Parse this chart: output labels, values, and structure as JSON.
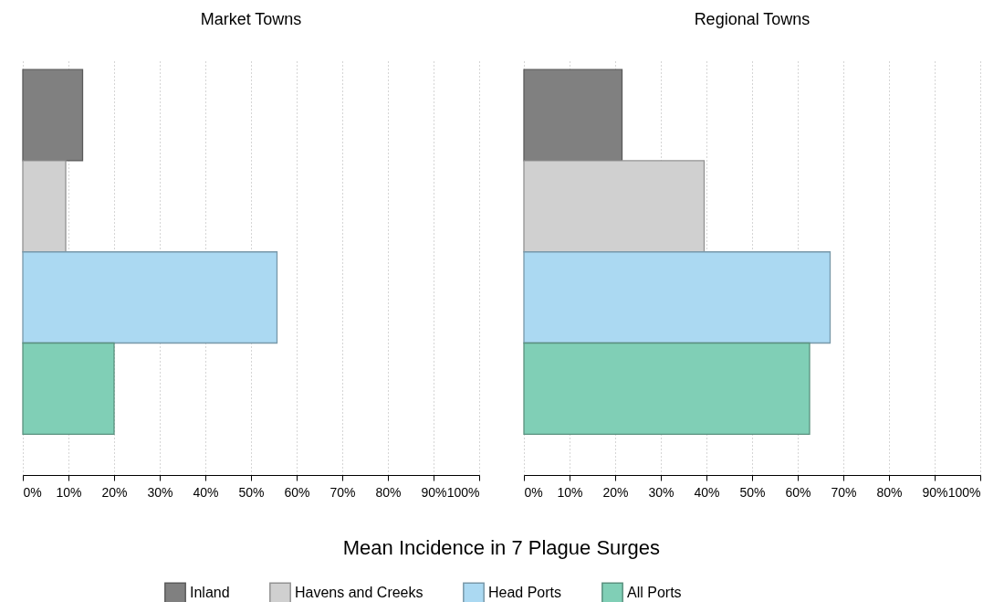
{
  "chart_data": [
    {
      "type": "bar",
      "orientation": "horizontal",
      "title": "Market Towns",
      "xlabel": "Mean Incidence in 7 Plague Surges",
      "categories": [
        null
      ],
      "series": [
        {
          "name": "Inland",
          "color": "#808080",
          "values": [
            13.1
          ]
        },
        {
          "name": "Havens and Creeks",
          "color": "#d0d0d0",
          "values": [
            9.4
          ]
        },
        {
          "name": "Head Ports",
          "color": "#abd9f2",
          "values": [
            55.7
          ]
        },
        {
          "name": "All Ports",
          "color": "#80cfb6",
          "values": [
            20.0
          ]
        }
      ],
      "xlim": [
        0,
        100
      ],
      "xticks": [
        {
          "value": 0,
          "label": "0%"
        },
        {
          "value": 10,
          "label": "10%"
        },
        {
          "value": 20,
          "label": "20%"
        },
        {
          "value": 30,
          "label": "30%"
        },
        {
          "value": 40,
          "label": "40%"
        },
        {
          "value": 50,
          "label": "50%"
        },
        {
          "value": 60,
          "label": "60%"
        },
        {
          "value": 70,
          "label": "70%"
        },
        {
          "value": 80,
          "label": "80%"
        },
        {
          "value": 90,
          "label": "90%"
        },
        {
          "value": 100,
          "label": "100%"
        }
      ],
      "grid": "x",
      "legend": "bottom",
      "tick_labels": "x"
    },
    {
      "type": "bar",
      "orientation": "horizontal",
      "title": "Regional Towns",
      "categories": [
        null
      ],
      "series": [
        {
          "color": "#808080",
          "values": [
            21.5
          ]
        },
        {
          "color": "#d0d0d0",
          "values": [
            39.5
          ]
        },
        {
          "color": "#abd9f2",
          "values": [
            67.1
          ]
        },
        {
          "color": "#80cfb6",
          "values": [
            62.6
          ]
        }
      ],
      "xlim": [
        0,
        100
      ],
      "xticks": [
        {
          "value": 0,
          "label": "0%"
        },
        {
          "value": 10,
          "label": "10%"
        },
        {
          "value": 20,
          "label": "20%"
        },
        {
          "value": 30,
          "label": "30%"
        },
        {
          "value": 40,
          "label": "40%"
        },
        {
          "value": 50,
          "label": "50%"
        },
        {
          "value": 60,
          "label": "60%"
        },
        {
          "value": 70,
          "label": "70%"
        },
        {
          "value": 80,
          "label": "80%"
        },
        {
          "value": 90,
          "label": "90%"
        },
        {
          "value": 100,
          "label": "100%"
        }
      ],
      "grid": "x",
      "tick_labels": "x"
    }
  ]
}
